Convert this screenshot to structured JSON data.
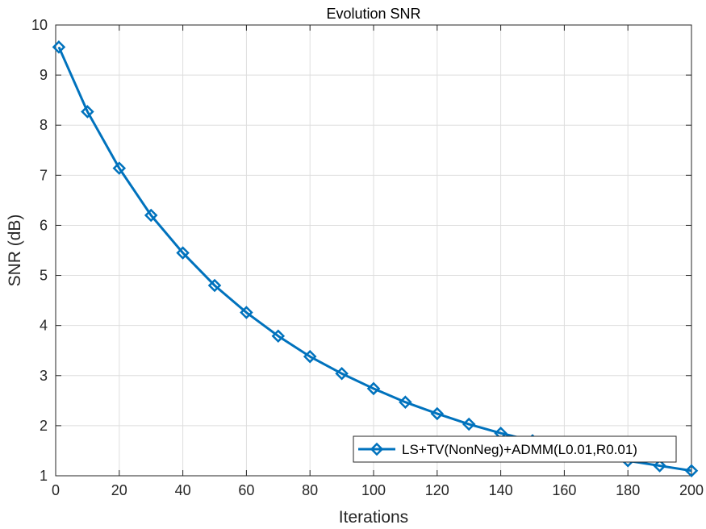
{
  "chart_data": {
    "type": "line",
    "title": "Evolution SNR",
    "xlabel": "Iterations",
    "ylabel": "SNR (dB)",
    "xlim": [
      0,
      200
    ],
    "ylim": [
      1,
      10
    ],
    "xticks": [
      0,
      20,
      40,
      60,
      80,
      100,
      120,
      140,
      160,
      180,
      200
    ],
    "yticks": [
      1,
      2,
      3,
      4,
      5,
      6,
      7,
      8,
      9,
      10
    ],
    "grid": true,
    "legend_position": "bottom-right",
    "series": [
      {
        "name": "LS+TV(NonNeg)+ADMM(L0.01,R0.01)",
        "color": "#0072BD",
        "marker": "diamond",
        "x": [
          1,
          10,
          20,
          30,
          40,
          50,
          60,
          70,
          80,
          90,
          100,
          110,
          120,
          130,
          140,
          150,
          160,
          170,
          180,
          190,
          200
        ],
        "y": [
          9.56,
          8.27,
          7.14,
          6.2,
          5.45,
          4.8,
          4.26,
          3.79,
          3.38,
          3.04,
          2.74,
          2.47,
          2.24,
          2.03,
          1.85,
          1.7,
          1.55,
          1.42,
          1.3,
          1.2,
          1.1
        ]
      }
    ]
  }
}
